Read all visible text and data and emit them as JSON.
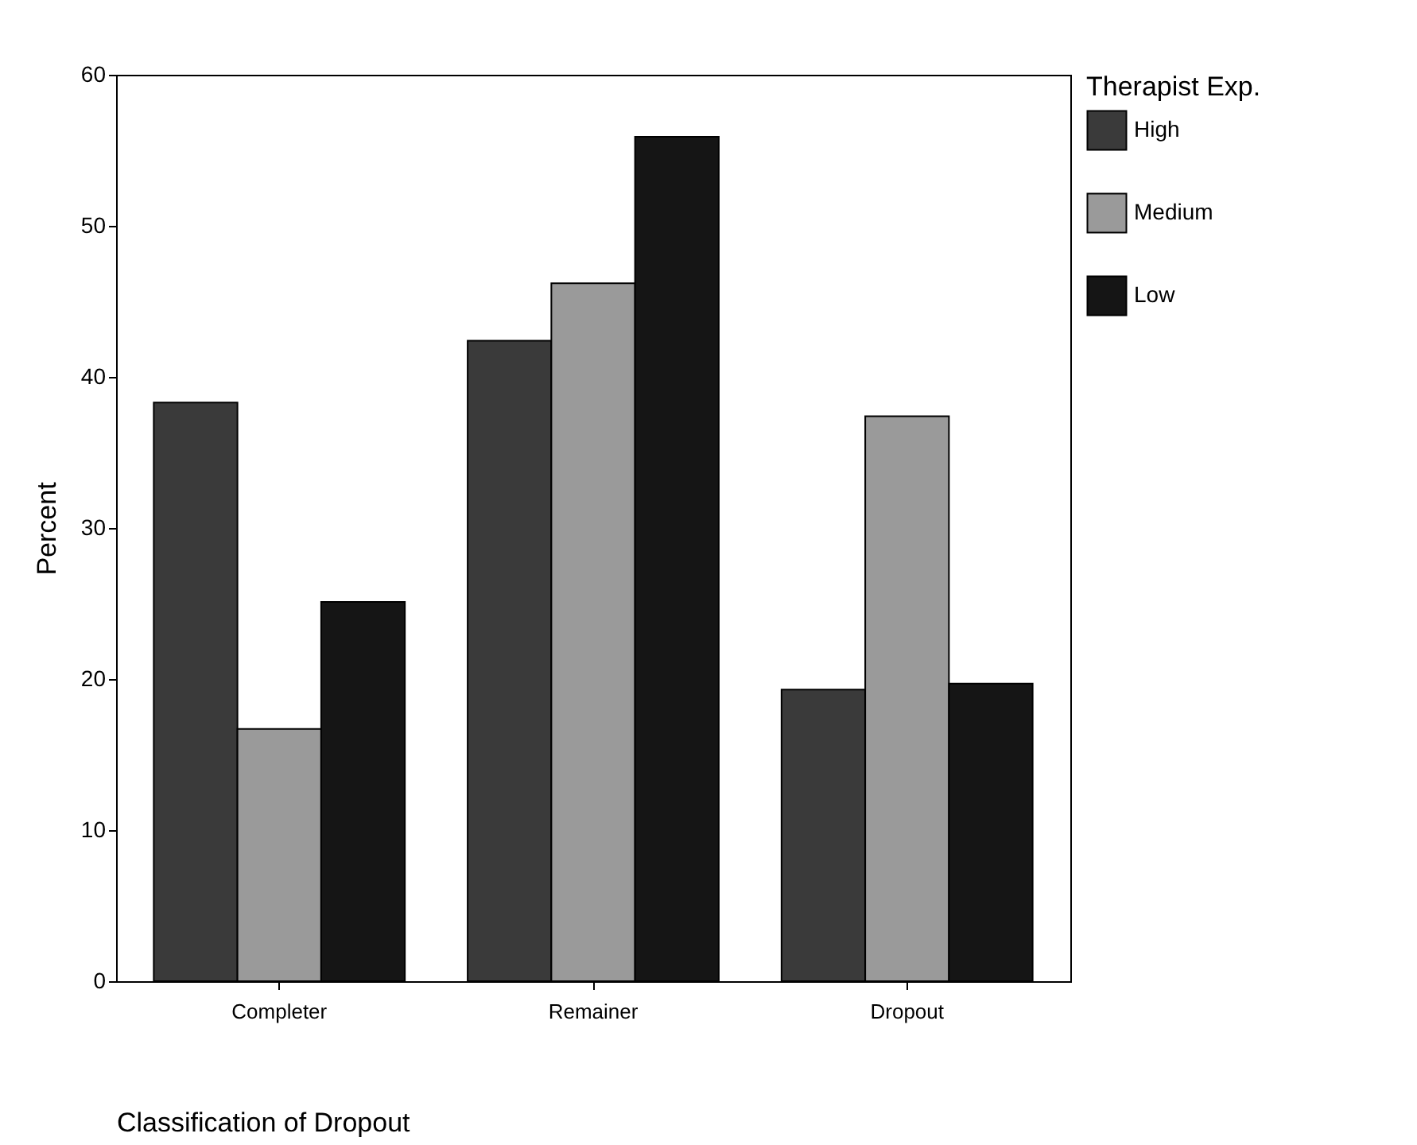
{
  "chart_data": {
    "type": "bar",
    "xlabel": "Classification of Dropout",
    "ylabel": "Percent",
    "legend_title": "Therapist Exp.",
    "categories": [
      "Completer",
      "Remainer",
      "Dropout"
    ],
    "series": [
      {
        "name": "High",
        "color": "#3a3a3a",
        "values": [
          38.3,
          42.4,
          19.3
        ]
      },
      {
        "name": "Medium",
        "color": "#9a9a9a",
        "values": [
          16.7,
          46.2,
          37.4
        ]
      },
      {
        "name": "Low",
        "color": "#151515",
        "values": [
          25.1,
          55.9,
          19.7
        ]
      }
    ],
    "ylim": [
      0,
      60
    ],
    "yticks": [
      0,
      10,
      20,
      30,
      40,
      50,
      60
    ],
    "grid": false,
    "legend": "right"
  }
}
